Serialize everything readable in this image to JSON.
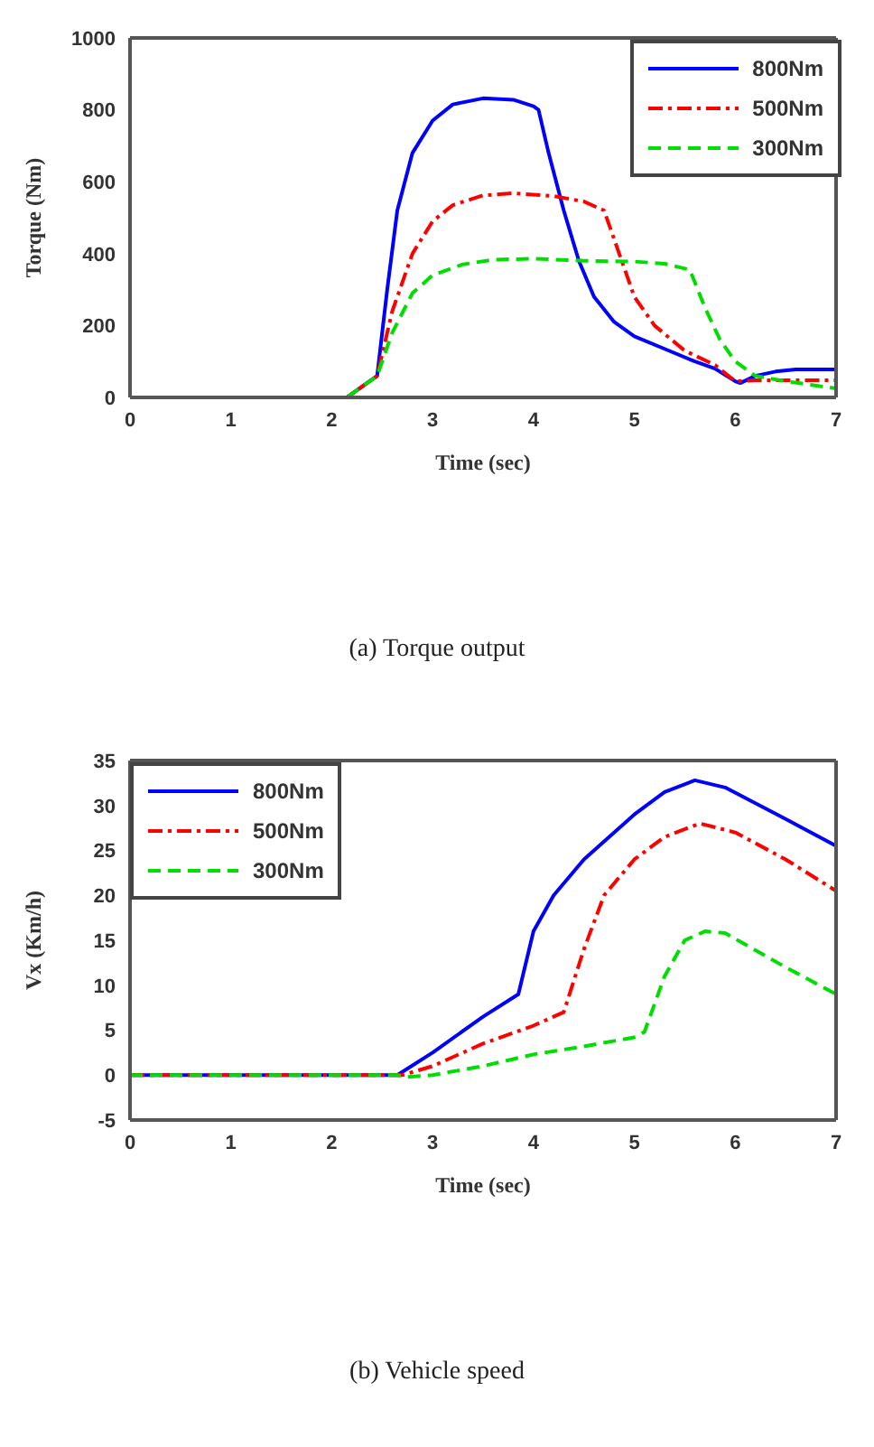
{
  "chart_data": [
    {
      "type": "line",
      "xlabel": "Time (sec)",
      "ylabel": "Torque (Nm)",
      "annotations": [
        "(a) Torque output"
      ],
      "xlim": [
        0,
        7
      ],
      "xticks": [
        0,
        1,
        2,
        3,
        4,
        5,
        6,
        7
      ],
      "ylim": [
        0,
        1000
      ],
      "yticks": [
        0,
        200,
        400,
        600,
        800,
        1000
      ],
      "grid": false,
      "legend": "top right",
      "marker": "none",
      "series": [
        {
          "name": "800Nm",
          "color": "#0000ff",
          "line_style": "solid",
          "x": [
            0,
            2.15,
            2.45,
            2.55,
            2.65,
            2.8,
            3,
            3.2,
            3.5,
            3.8,
            4.0,
            4.05,
            4.15,
            4.3,
            4.45,
            4.6,
            4.8,
            5,
            5.3,
            5.6,
            5.8,
            6.0,
            6.05,
            6.2,
            6.4,
            6.6,
            7
          ],
          "values": [
            0,
            0,
            60,
            300,
            520,
            680,
            770,
            815,
            832,
            828,
            810,
            800,
            680,
            520,
            380,
            280,
            210,
            170,
            135,
            100,
            80,
            45,
            40,
            60,
            72,
            78,
            78
          ]
        },
        {
          "name": "500Nm",
          "color": "#ff0000",
          "line_style": "dashdot",
          "x": [
            0,
            2.15,
            2.45,
            2.6,
            2.8,
            3,
            3.2,
            3.5,
            3.8,
            4.2,
            4.5,
            4.7,
            4.85,
            5,
            5.2,
            5.5,
            5.8,
            6.0,
            6.2,
            7
          ],
          "values": [
            0,
            0,
            60,
            240,
            400,
            490,
            535,
            562,
            568,
            560,
            545,
            520,
            400,
            280,
            200,
            130,
            90,
            45,
            48,
            48
          ]
        },
        {
          "name": "300Nm",
          "color": "#00dd00",
          "line_style": "dashed",
          "x": [
            0,
            2.15,
            2.45,
            2.6,
            2.8,
            3,
            3.3,
            3.6,
            4,
            4.5,
            5,
            5.3,
            5.55,
            5.7,
            5.85,
            6.0,
            6.2,
            6.5,
            7
          ],
          "values": [
            0,
            0,
            60,
            180,
            290,
            340,
            370,
            383,
            386,
            380,
            378,
            372,
            355,
            250,
            160,
            100,
            60,
            45,
            25
          ]
        }
      ]
    },
    {
      "type": "line",
      "xlabel": "Time (sec)",
      "ylabel": "Vx (Km/h)",
      "annotations": [
        "(b) Vehicle speed"
      ],
      "xlim": [
        0,
        7
      ],
      "xticks": [
        0,
        1,
        2,
        3,
        4,
        5,
        6,
        7
      ],
      "ylim": [
        -5,
        35
      ],
      "yticks": [
        -5,
        0,
        5,
        10,
        15,
        20,
        25,
        30,
        35
      ],
      "grid": false,
      "legend": "top left",
      "marker": "none",
      "series": [
        {
          "name": "800Nm",
          "color": "#0000ff",
          "line_style": "solid",
          "x": [
            0,
            2.65,
            3,
            3.5,
            3.85,
            4,
            4.2,
            4.5,
            5,
            5.3,
            5.6,
            5.9,
            6.5,
            7
          ],
          "values": [
            0,
            0,
            2.5,
            6.5,
            9,
            16,
            20,
            24,
            29,
            31.5,
            32.8,
            32,
            28.5,
            25.5
          ]
        },
        {
          "name": "500Nm",
          "color": "#ff0000",
          "line_style": "dashdot",
          "x": [
            0,
            2.7,
            3,
            3.5,
            4,
            4.3,
            4.5,
            4.7,
            5,
            5.3,
            5.65,
            6,
            6.5,
            7
          ],
          "values": [
            0,
            0,
            1,
            3.5,
            5.5,
            7,
            14,
            20,
            24,
            26.5,
            28,
            27,
            24,
            20.5
          ]
        },
        {
          "name": "300Nm",
          "color": "#00dd00",
          "line_style": "dashed",
          "x": [
            0,
            2.65,
            2.75,
            3,
            3.5,
            4,
            4.5,
            5,
            5.1,
            5.3,
            5.5,
            5.7,
            5.9,
            6.5,
            7
          ],
          "values": [
            0,
            0,
            -0.2,
            0,
            1,
            2.3,
            3.2,
            4.2,
            4.8,
            11,
            15,
            16,
            15.8,
            12,
            9
          ]
        }
      ]
    }
  ]
}
